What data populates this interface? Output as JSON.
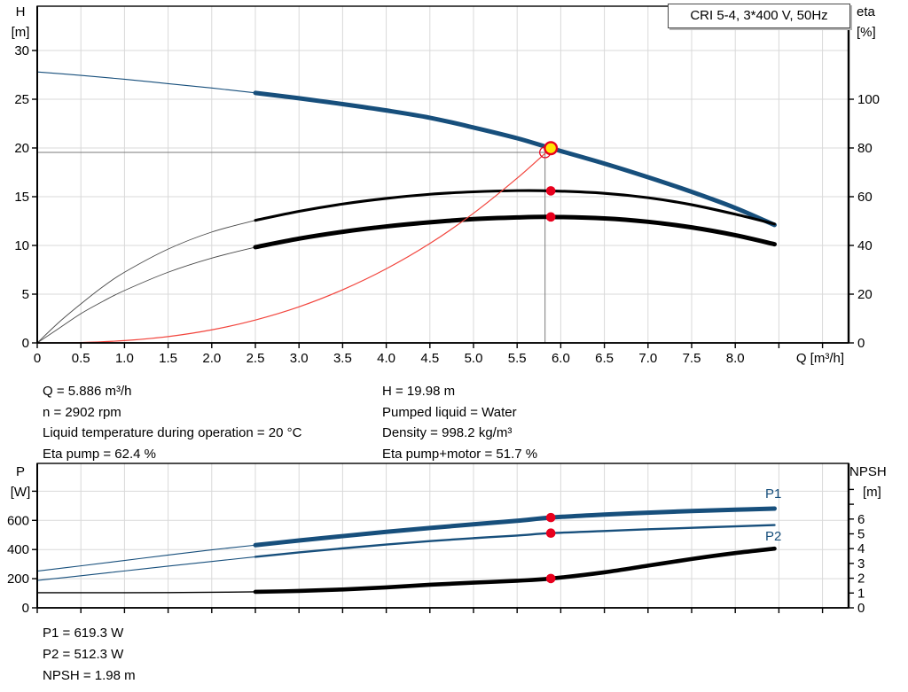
{
  "title_box": {
    "label": "CRI 5-4, 3*400 V, 50Hz"
  },
  "colors": {
    "curve_blue": "#174f7c",
    "curve_black": "#000000",
    "curve_thin_gray": "#4a4a4a",
    "system_curve_red": "#f2453d",
    "marker_red": "#e8001d",
    "duty_yellow": "#ffe506",
    "grid": "#d9d9d9",
    "crosshair": "#7a7a7a",
    "axis": "#000000"
  },
  "annotations": {
    "left": [
      "Q = 5.886 m³/h",
      "n = 2902 rpm",
      "Liquid temperature during operation = 20 °C",
      "Eta pump = 62.4 %"
    ],
    "right": [
      "H = 19.98 m",
      "Pumped liquid = Water",
      "Density = 998.2 kg/m³",
      "Eta pump+motor = 51.7 %"
    ],
    "bottom": [
      "P1 = 619.3 W",
      "P2 = 512.3 W",
      "NPSH = 1.98 m"
    ]
  },
  "chart_data": [
    {
      "type": "line",
      "title": "CRI 5-4, 3*400 V, 50Hz",
      "grid": true,
      "legend_position": "none",
      "x_axis": {
        "label": "Q [m³/h]",
        "min": 0,
        "max": 9.3,
        "tick_step": 0.5,
        "label_max": 8.0
      },
      "y_left": {
        "title": "H",
        "unit": "[m]",
        "min": 0,
        "max": 34.5,
        "ticks": [
          0,
          5,
          10,
          15,
          20,
          25,
          30
        ]
      },
      "y_right": {
        "title": "eta",
        "unit": "[%]",
        "min": 0,
        "max": 138,
        "ticks": [
          0,
          20,
          40,
          60,
          80,
          100
        ]
      },
      "series": [
        {
          "name": "H",
          "axis": "left",
          "color": "#174f7c",
          "thick_from": 2.5,
          "points": [
            [
              0,
              27.8
            ],
            [
              0.5,
              27.45
            ],
            [
              1,
              27.05
            ],
            [
              1.5,
              26.6
            ],
            [
              2,
              26.15
            ],
            [
              2.5,
              25.65
            ],
            [
              3,
              25.1
            ],
            [
              3.5,
              24.5
            ],
            [
              4,
              23.85
            ],
            [
              4.5,
              23.1
            ],
            [
              5,
              22.1
            ],
            [
              5.5,
              21.0
            ],
            [
              5.886,
              19.98
            ],
            [
              6.5,
              18.4
            ],
            [
              7,
              17.0
            ],
            [
              7.5,
              15.5
            ],
            [
              8,
              13.85
            ],
            [
              8.45,
              12.1
            ]
          ]
        },
        {
          "name": "Eta pump",
          "axis": "right",
          "color": "#000000",
          "thick_from": 2.5,
          "points": [
            [
              0,
              0
            ],
            [
              0.25,
              8.5
            ],
            [
              0.5,
              16
            ],
            [
              0.75,
              23
            ],
            [
              1,
              29
            ],
            [
              1.5,
              38.5
            ],
            [
              2,
              45.5
            ],
            [
              2.5,
              50.3
            ],
            [
              3,
              54
            ],
            [
              3.5,
              57
            ],
            [
              4,
              59.3
            ],
            [
              4.5,
              61
            ],
            [
              5,
              62
            ],
            [
              5.5,
              62.5
            ],
            [
              5.886,
              62.4
            ],
            [
              6.5,
              61.4
            ],
            [
              7,
              59.6
            ],
            [
              7.5,
              56.7
            ],
            [
              8,
              52.8
            ],
            [
              8.45,
              48.8
            ]
          ]
        },
        {
          "name": "Eta pump+motor",
          "axis": "right",
          "color": "#000000",
          "thick_from": 2.5,
          "points": [
            [
              0,
              0
            ],
            [
              0.25,
              6
            ],
            [
              0.5,
              12
            ],
            [
              0.75,
              17
            ],
            [
              1,
              21.5
            ],
            [
              1.5,
              29
            ],
            [
              2,
              34.8
            ],
            [
              2.5,
              39.3
            ],
            [
              3,
              42.8
            ],
            [
              3.5,
              45.6
            ],
            [
              4,
              47.8
            ],
            [
              4.5,
              49.5
            ],
            [
              5,
              50.8
            ],
            [
              5.5,
              51.5
            ],
            [
              5.886,
              51.7
            ],
            [
              6.5,
              51.1
            ],
            [
              7,
              49.7
            ],
            [
              7.5,
              47.4
            ],
            [
              8,
              44.2
            ],
            [
              8.45,
              40.5
            ]
          ]
        },
        {
          "name": "System curve",
          "axis": "left",
          "color": "#f2453d",
          "thick_from": null,
          "points": [
            [
              0,
              0
            ],
            [
              0.5,
              0.04
            ],
            [
              1,
              0.24
            ],
            [
              1.5,
              0.65
            ],
            [
              2,
              1.34
            ],
            [
              2.5,
              2.35
            ],
            [
              3,
              3.7
            ],
            [
              3.5,
              5.45
            ],
            [
              4,
              7.6
            ],
            [
              4.5,
              10.2
            ],
            [
              5,
              13.3
            ],
            [
              5.5,
              16.9
            ],
            [
              5.886,
              19.98
            ]
          ]
        }
      ],
      "duty_point": {
        "flow": 5.886,
        "head": 19.98,
        "eta_pump": 62.4,
        "eta_pump_motor": 51.7
      },
      "requested_point": {
        "flow": 5.82,
        "head": 19.55
      },
      "markers": [
        {
          "type": "dot",
          "q": 5.886,
          "value": 62.4,
          "axis": "right"
        },
        {
          "type": "dot",
          "q": 5.886,
          "value": 51.7,
          "axis": "right"
        },
        {
          "type": "open-circle",
          "q": 5.82,
          "value": 19.55,
          "axis": "left"
        },
        {
          "type": "duty",
          "q": 5.886,
          "value": 19.98,
          "axis": "left"
        }
      ]
    },
    {
      "type": "line",
      "title": "Power and NPSH",
      "grid": true,
      "legend_position": "inline-right",
      "x_axis": {
        "label": "",
        "min": 0,
        "max": 9.3,
        "tick_step": 0.5,
        "label_max": -1
      },
      "y_left": {
        "title": "P",
        "unit": "[W]",
        "min": 0,
        "max": 1000,
        "ticks": [
          0,
          200,
          400,
          600
        ],
        "unlabeled_ticks": [
          800
        ]
      },
      "y_right": {
        "title": "NPSH",
        "unit": "[m]",
        "min": 0,
        "max": 9.7,
        "ticks": [
          0,
          1,
          2,
          3,
          4,
          5,
          6
        ],
        "unlabeled_ticks": [
          7,
          8
        ]
      },
      "series": [
        {
          "name": "P1",
          "axis": "left",
          "color": "#174f7c",
          "thick_from": 2.5,
          "points": [
            [
              0,
              252
            ],
            [
              0.5,
              288
            ],
            [
              1,
              325
            ],
            [
              1.5,
              362
            ],
            [
              2,
              398
            ],
            [
              2.5,
              430
            ],
            [
              3,
              462
            ],
            [
              3.5,
              492
            ],
            [
              4,
              521
            ],
            [
              4.5,
              548
            ],
            [
              5,
              573
            ],
            [
              5.5,
              597
            ],
            [
              5.886,
              619.3
            ],
            [
              6.5,
              640
            ],
            [
              7,
              653
            ],
            [
              7.5,
              664
            ],
            [
              8,
              673
            ],
            [
              8.45,
              681
            ]
          ]
        },
        {
          "name": "P2",
          "axis": "left",
          "color": "#174f7c",
          "thick_from": 2.5,
          "points": [
            [
              0,
              188
            ],
            [
              0.5,
              220
            ],
            [
              1,
              253
            ],
            [
              1.5,
              286
            ],
            [
              2,
              318
            ],
            [
              2.5,
              350
            ],
            [
              3,
              380
            ],
            [
              3.5,
              408
            ],
            [
              4,
              434
            ],
            [
              4.5,
              458
            ],
            [
              5,
              478
            ],
            [
              5.5,
              496
            ],
            [
              5.886,
              512.3
            ],
            [
              6.5,
              527
            ],
            [
              7,
              539
            ],
            [
              7.5,
              549
            ],
            [
              8,
              559
            ],
            [
              8.45,
              568
            ]
          ]
        },
        {
          "name": "NPSH",
          "axis": "right",
          "color": "#000000",
          "thick_from": 2.5,
          "points": [
            [
              0,
              1.02
            ],
            [
              0.5,
              1.02
            ],
            [
              1,
              1.02
            ],
            [
              1.5,
              1.03
            ],
            [
              2,
              1.05
            ],
            [
              2.5,
              1.08
            ],
            [
              3,
              1.14
            ],
            [
              3.5,
              1.24
            ],
            [
              4,
              1.38
            ],
            [
              4.5,
              1.56
            ],
            [
              5,
              1.7
            ],
            [
              5.5,
              1.83
            ],
            [
              5.886,
              1.98
            ],
            [
              6.5,
              2.4
            ],
            [
              7,
              2.85
            ],
            [
              7.5,
              3.3
            ],
            [
              8,
              3.7
            ],
            [
              8.45,
              4.0
            ]
          ]
        }
      ],
      "duty_point": {
        "flow": 5.886,
        "p1": 619.3,
        "p2": 512.3,
        "npsh": 1.98
      },
      "markers": [
        {
          "type": "dot",
          "q": 5.886,
          "value": 619.3,
          "axis": "left"
        },
        {
          "type": "dot",
          "q": 5.886,
          "value": 512.3,
          "axis": "left"
        },
        {
          "type": "dot",
          "q": 5.886,
          "value": 1.98,
          "axis": "right"
        }
      ]
    }
  ]
}
